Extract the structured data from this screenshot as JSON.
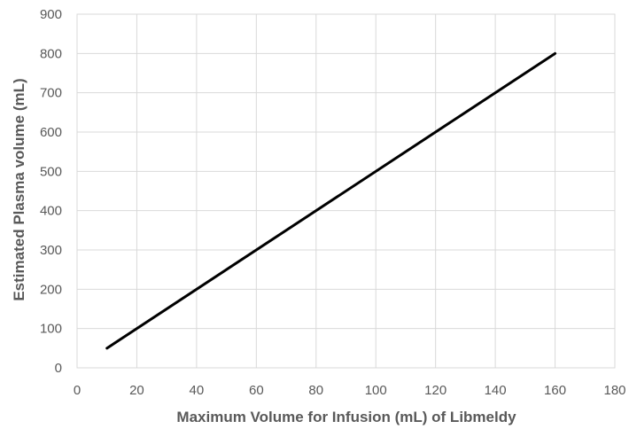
{
  "chart_data": {
    "type": "line",
    "title": "",
    "xlabel": "Maximum Volume for Infusion (mL) of Libmeldy",
    "ylabel": "Estimated Plasma volume (mL)",
    "xlim": [
      0,
      180
    ],
    "ylim": [
      0,
      900
    ],
    "x_ticks": [
      0,
      20,
      40,
      60,
      80,
      100,
      120,
      140,
      160,
      180
    ],
    "y_ticks": [
      0,
      100,
      200,
      300,
      400,
      500,
      600,
      700,
      800,
      900
    ],
    "grid": true,
    "legend": "none",
    "series": [
      {
        "color": "#000000",
        "x": [
          10,
          160
        ],
        "y": [
          50,
          800
        ]
      }
    ]
  }
}
